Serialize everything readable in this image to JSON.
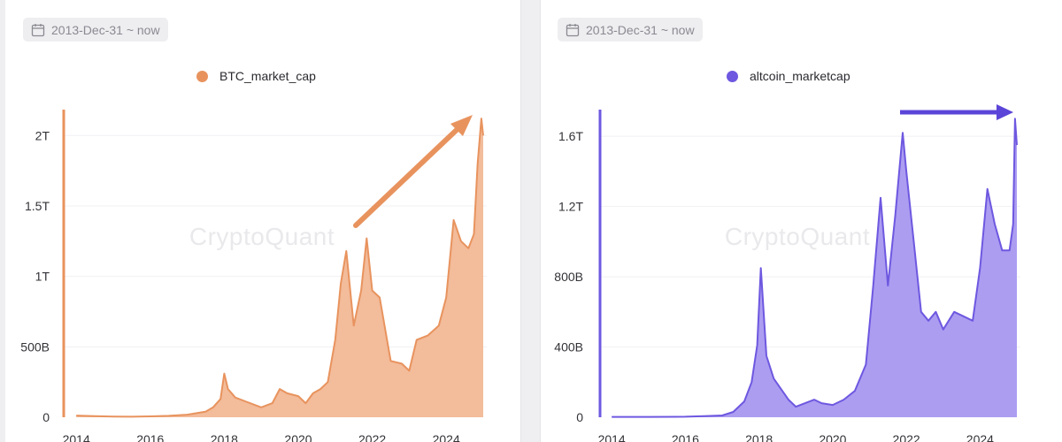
{
  "left": {
    "date_range": "2013-Dec-31 ~ now",
    "watermark": "CryptoQuant",
    "color": "#e8935e",
    "fill": "#f2b896"
  },
  "right": {
    "date_range": "2013-Dec-31 ~ now",
    "watermark": "CryptoQuant",
    "color": "#6e58e0",
    "fill": "#a898f0"
  },
  "chart_data": [
    {
      "type": "area",
      "series": [
        {
          "name": "BTC_market_cap",
          "points": [
            [
              2014.0,
              0.012
            ],
            [
              2014.5,
              0.008
            ],
            [
              2015.0,
              0.005
            ],
            [
              2015.5,
              0.004
            ],
            [
              2016.0,
              0.006
            ],
            [
              2016.5,
              0.01
            ],
            [
              2017.0,
              0.018
            ],
            [
              2017.5,
              0.04
            ],
            [
              2017.7,
              0.07
            ],
            [
              2017.9,
              0.13
            ],
            [
              2018.0,
              0.31
            ],
            [
              2018.1,
              0.2
            ],
            [
              2018.3,
              0.14
            ],
            [
              2018.6,
              0.11
            ],
            [
              2019.0,
              0.07
            ],
            [
              2019.3,
              0.1
            ],
            [
              2019.5,
              0.2
            ],
            [
              2019.7,
              0.17
            ],
            [
              2020.0,
              0.15
            ],
            [
              2020.2,
              0.1
            ],
            [
              2020.4,
              0.17
            ],
            [
              2020.6,
              0.2
            ],
            [
              2020.8,
              0.25
            ],
            [
              2021.0,
              0.55
            ],
            [
              2021.15,
              0.95
            ],
            [
              2021.3,
              1.18
            ],
            [
              2021.5,
              0.65
            ],
            [
              2021.7,
              0.9
            ],
            [
              2021.85,
              1.27
            ],
            [
              2022.0,
              0.9
            ],
            [
              2022.2,
              0.85
            ],
            [
              2022.4,
              0.55
            ],
            [
              2022.5,
              0.4
            ],
            [
              2022.8,
              0.38
            ],
            [
              2023.0,
              0.33
            ],
            [
              2023.2,
              0.55
            ],
            [
              2023.5,
              0.58
            ],
            [
              2023.8,
              0.65
            ],
            [
              2024.0,
              0.85
            ],
            [
              2024.2,
              1.4
            ],
            [
              2024.4,
              1.25
            ],
            [
              2024.6,
              1.2
            ],
            [
              2024.75,
              1.3
            ],
            [
              2024.85,
              1.8
            ],
            [
              2024.95,
              2.12
            ],
            [
              2025.0,
              2.0
            ]
          ]
        }
      ],
      "y_ticks": [
        "0",
        "500B",
        "1T",
        "1.5T",
        "2T"
      ],
      "x_ticks": [
        "2014",
        "2016",
        "2018",
        "2020",
        "2022",
        "2024"
      ],
      "ylim": [
        0,
        2.2
      ],
      "xlim": [
        2013.9,
        2025.0
      ],
      "legend": "top-center",
      "annotations": [
        {
          "type": "arrow",
          "direction": "up-right"
        }
      ]
    },
    {
      "type": "area",
      "series": [
        {
          "name": "altcoin_marketcap",
          "points": [
            [
              2014.0,
              0.002
            ],
            [
              2015.0,
              0.002
            ],
            [
              2016.0,
              0.003
            ],
            [
              2016.5,
              0.006
            ],
            [
              2017.0,
              0.01
            ],
            [
              2017.3,
              0.03
            ],
            [
              2017.6,
              0.09
            ],
            [
              2017.8,
              0.2
            ],
            [
              2017.95,
              0.41
            ],
            [
              2018.05,
              0.85
            ],
            [
              2018.2,
              0.35
            ],
            [
              2018.4,
              0.22
            ],
            [
              2018.8,
              0.1
            ],
            [
              2019.0,
              0.06
            ],
            [
              2019.5,
              0.1
            ],
            [
              2019.7,
              0.08
            ],
            [
              2020.0,
              0.07
            ],
            [
              2020.3,
              0.1
            ],
            [
              2020.6,
              0.15
            ],
            [
              2020.9,
              0.3
            ],
            [
              2021.1,
              0.75
            ],
            [
              2021.3,
              1.25
            ],
            [
              2021.5,
              0.75
            ],
            [
              2021.7,
              1.15
            ],
            [
              2021.9,
              1.62
            ],
            [
              2022.0,
              1.4
            ],
            [
              2022.2,
              1.0
            ],
            [
              2022.4,
              0.6
            ],
            [
              2022.6,
              0.55
            ],
            [
              2022.8,
              0.6
            ],
            [
              2023.0,
              0.5
            ],
            [
              2023.3,
              0.6
            ],
            [
              2023.5,
              0.58
            ],
            [
              2023.8,
              0.55
            ],
            [
              2024.0,
              0.85
            ],
            [
              2024.2,
              1.3
            ],
            [
              2024.4,
              1.1
            ],
            [
              2024.6,
              0.95
            ],
            [
              2024.8,
              0.95
            ],
            [
              2024.9,
              1.1
            ],
            [
              2024.95,
              1.7
            ],
            [
              2025.0,
              1.55
            ]
          ]
        }
      ],
      "y_ticks": [
        "0",
        "400B",
        "800B",
        "1.2T",
        "1.6T"
      ],
      "x_ticks": [
        "2014",
        "2016",
        "2018",
        "2020",
        "2022",
        "2024"
      ],
      "ylim": [
        0,
        1.76
      ],
      "xlim": [
        2013.9,
        2025.0
      ],
      "legend": "top-center",
      "annotations": [
        {
          "type": "arrow",
          "direction": "right"
        }
      ]
    }
  ]
}
